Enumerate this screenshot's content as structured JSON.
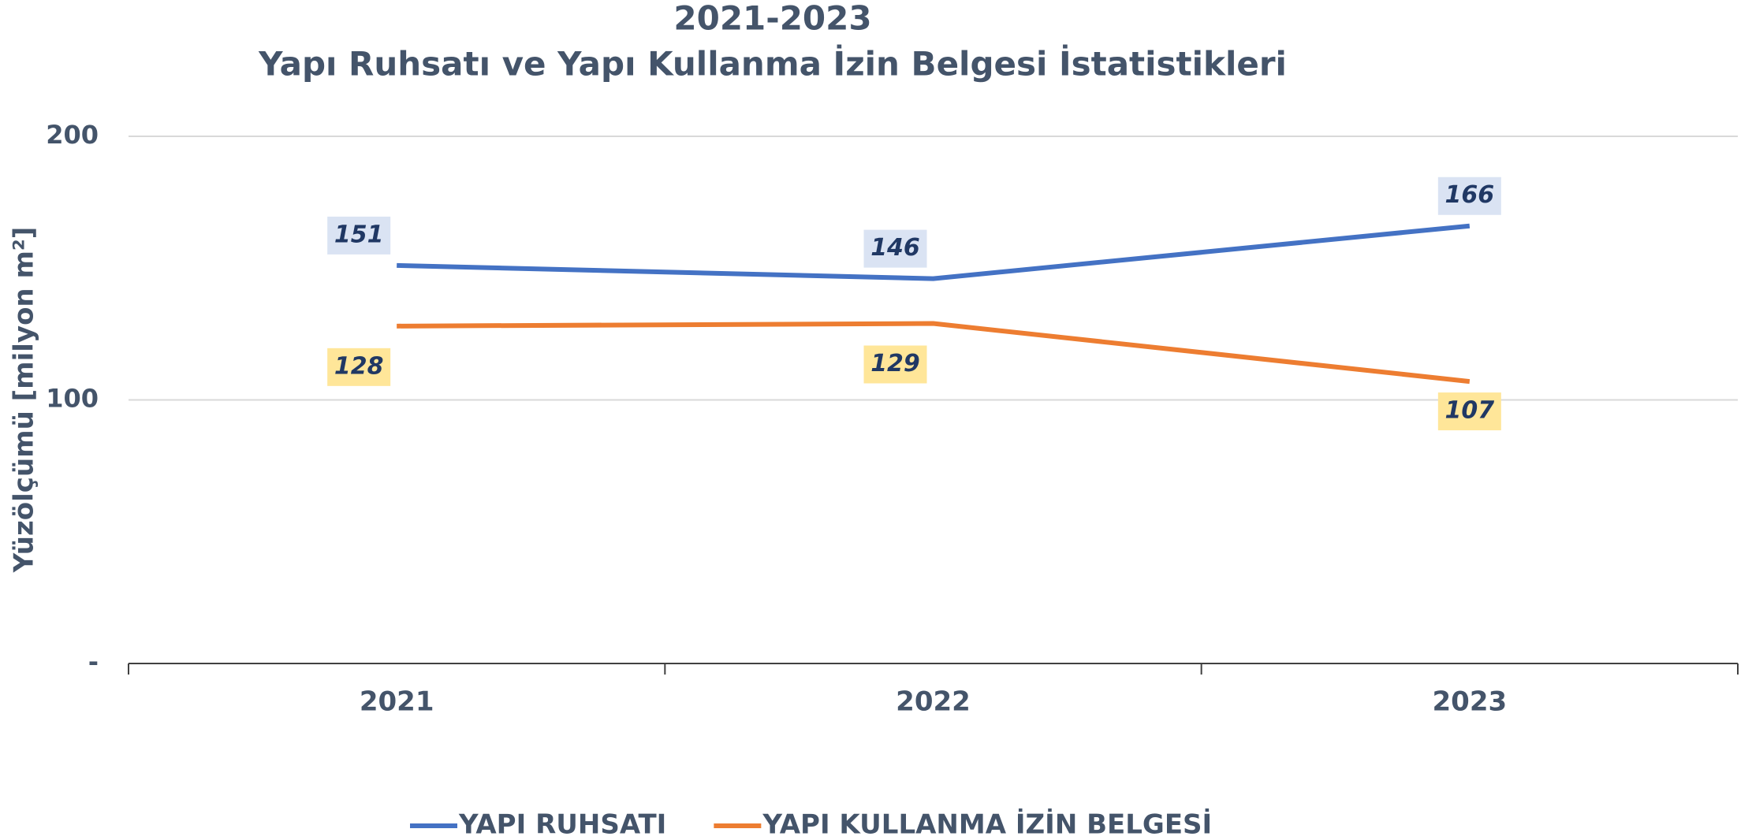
{
  "chart_data": {
    "type": "line",
    "title": "2021-2023",
    "subtitle": "Yapı Ruhsatı ve Yapı Kullanma İzin Belgesi İstatistikleri",
    "y_label": "Yüzölçümü [milyon m²]",
    "categories": [
      "2021",
      "2022",
      "2023"
    ],
    "series": [
      {
        "name": "YAPI RUHSATI",
        "color": "#4472c4",
        "label_color": "#dae3f3",
        "values": [
          151,
          146,
          166
        ]
      },
      {
        "name": "YAPI KULLANMA İZİN BELGESİ",
        "color": "#ed7d31",
        "label_color": "#ffe699",
        "values": [
          128,
          129,
          107
        ]
      }
    ],
    "ylim": [
      0,
      200
    ],
    "yticks": [
      {
        "value": 0,
        "label": "-"
      },
      100,
      200
    ],
    "grid": true,
    "legend": "bottom"
  }
}
